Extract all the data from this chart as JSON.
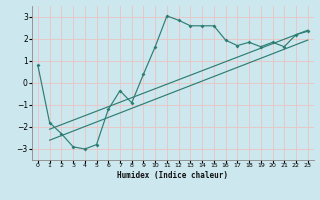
{
  "xlabel": "Humidex (Indice chaleur)",
  "bg_color": "#cce8ee",
  "grid_color": "#e8c8c8",
  "line_color": "#2e7d74",
  "xlim": [
    -0.5,
    23.5
  ],
  "ylim": [
    -3.5,
    3.5
  ],
  "yticks": [
    -3,
    -2,
    -1,
    0,
    1,
    2,
    3
  ],
  "xticks": [
    0,
    1,
    2,
    3,
    4,
    5,
    6,
    7,
    8,
    9,
    10,
    11,
    12,
    13,
    14,
    15,
    16,
    17,
    18,
    19,
    20,
    21,
    22,
    23
  ],
  "series1_x": [
    0,
    1,
    2,
    3,
    4,
    5,
    6,
    7,
    8,
    9,
    10,
    11,
    12,
    13,
    14,
    15,
    16,
    17,
    18,
    19,
    20,
    21,
    22,
    23
  ],
  "series1_y": [
    0.8,
    -1.8,
    -2.3,
    -2.9,
    -3.0,
    -2.8,
    -1.2,
    -0.35,
    -0.9,
    0.4,
    1.65,
    3.05,
    2.85,
    2.6,
    2.6,
    2.6,
    1.95,
    1.7,
    1.85,
    1.65,
    1.85,
    1.65,
    2.2,
    2.35
  ],
  "line1_x": [
    1,
    23
  ],
  "line1_y": [
    -2.1,
    2.4
  ],
  "line2_x": [
    1,
    23
  ],
  "line2_y": [
    -2.6,
    1.95
  ]
}
